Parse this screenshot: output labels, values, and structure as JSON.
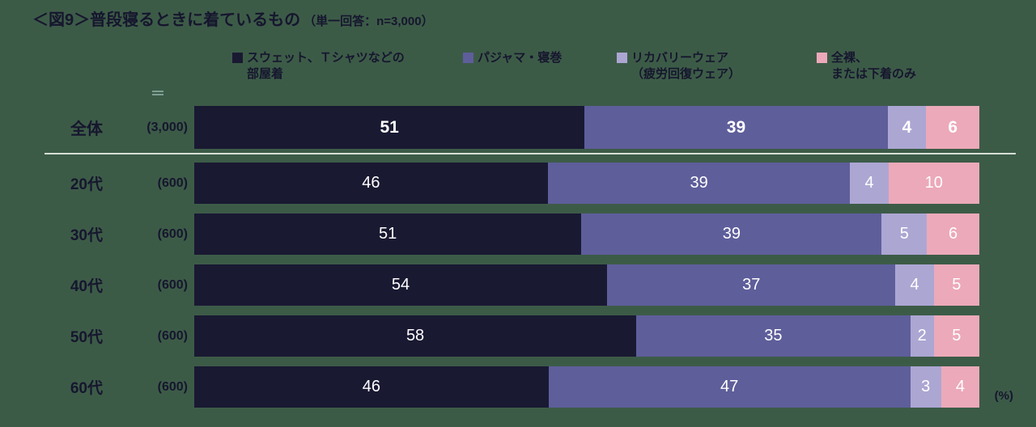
{
  "title": {
    "main": "＜図9＞普段寝るときに着ているもの",
    "sub": "（単一回答：n=3,000）"
  },
  "unit_label": "(%)",
  "colors": {
    "background": "#3C5B47",
    "text": "#16162E",
    "separator": "#D6DED6",
    "value_text": "#FFFFFF",
    "series": [
      "#191932",
      "#5E5E9B",
      "#ACA6D3",
      "#ECA9B9"
    ]
  },
  "legend": {
    "items": [
      {
        "lines": [
          "スウェット、Ｔシャツなどの",
          "部屋着"
        ]
      },
      {
        "lines": [
          "パジャマ・寝巻"
        ]
      },
      {
        "lines": [
          "リカバリーウェア",
          "（疲労回復ウェア）"
        ]
      },
      {
        "lines": [
          "全裸、",
          "または下着のみ"
        ]
      }
    ]
  },
  "chart_data": {
    "type": "bar",
    "orientation": "horizontal-stacked",
    "title": "＜図9＞普段寝るときに着ているもの（単一回答：n=3,000）",
    "categories": [
      "全体",
      "20代",
      "30代",
      "40代",
      "50代",
      "60代"
    ],
    "counts": [
      "(3,000)",
      "(600)",
      "(600)",
      "(600)",
      "(600)",
      "(600)"
    ],
    "series": [
      {
        "name": "スウェット、Ｔシャツなどの部屋着",
        "values": [
          51,
          46,
          51,
          54,
          58,
          46
        ]
      },
      {
        "name": "パジャマ・寝巻",
        "values": [
          39,
          39,
          39,
          37,
          35,
          47
        ]
      },
      {
        "name": "リカバリーウェア（疲労回復ウェア）",
        "values": [
          4,
          4,
          5,
          4,
          2,
          3
        ]
      },
      {
        "name": "全裸、または下着のみ",
        "values": [
          6,
          10,
          6,
          5,
          5,
          4
        ]
      }
    ],
    "xlim": [
      0,
      100
    ],
    "unit": "%",
    "legend_position": "top",
    "value_labels": "inside-white",
    "grid": false
  }
}
